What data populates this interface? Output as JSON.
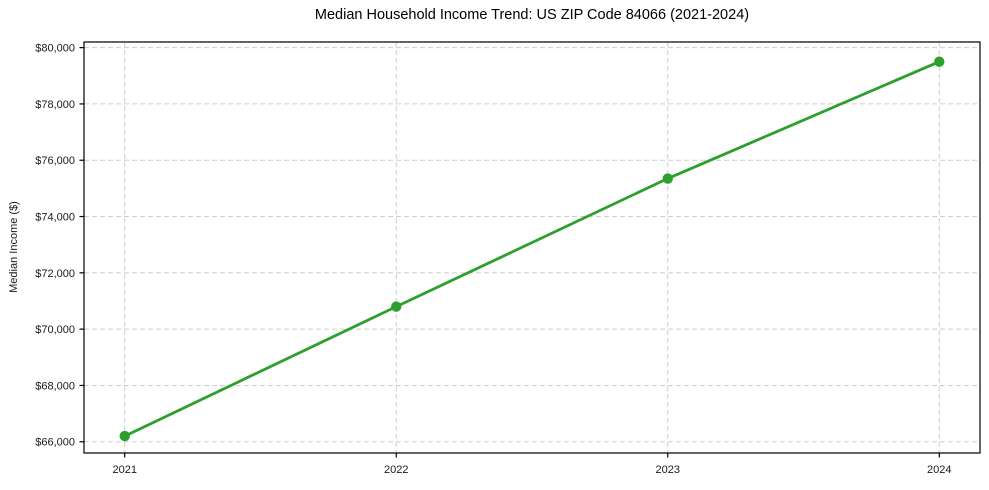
{
  "chart_data": {
    "type": "line",
    "title": "Median Household Income Trend: US ZIP Code 84066 (2021-2024)",
    "xlabel": "",
    "ylabel": "Median Income ($)",
    "x": [
      2021,
      2022,
      2023,
      2024
    ],
    "x_tick_labels": [
      "2021",
      "2022",
      "2023",
      "2024"
    ],
    "series": [
      {
        "name": "Median household income",
        "values": [
          66200,
          70800,
          75350,
          79500
        ]
      }
    ],
    "y_ticks": [
      66000,
      68000,
      70000,
      72000,
      74000,
      76000,
      78000,
      80000
    ],
    "y_tick_labels": [
      "$66,000",
      "$68,000",
      "$70,000",
      "$72,000",
      "$74,000",
      "$76,000",
      "$78,000",
      "$80,000"
    ],
    "xlim": [
      2020.85,
      2024.15
    ],
    "ylim": [
      65600,
      80200
    ],
    "grid": true,
    "grid_style": "dashed",
    "legend": "none",
    "colors": {
      "line": "#2ca02c",
      "marker": "#2ca02c",
      "grid": "#cdcdcd",
      "spine": "#000000",
      "tick_text": "#1a1a1a",
      "background": "#ffffff"
    }
  }
}
